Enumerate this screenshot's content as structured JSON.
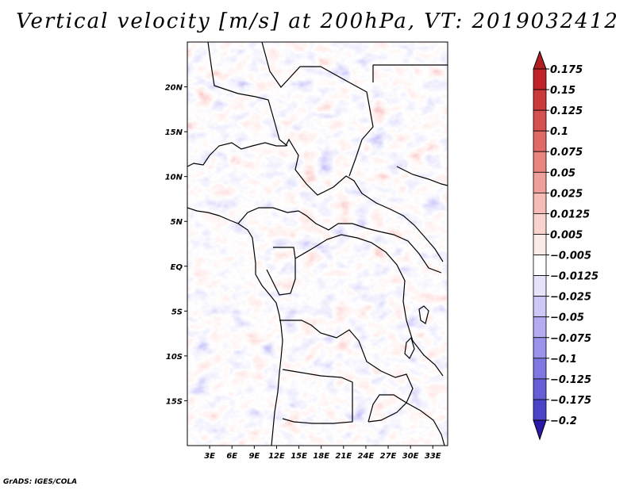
{
  "title": "Vertical velocity [m/s] at 200hPa, VT: 2019032412",
  "credit": "GrADS: IGES/COLA",
  "map": {
    "lon_range": [
      0,
      35
    ],
    "lat_range": [
      -20,
      25
    ],
    "lat_ticks": [
      {
        "lat": 20,
        "label": "20N"
      },
      {
        "lat": 15,
        "label": "15N"
      },
      {
        "lat": 10,
        "label": "10N"
      },
      {
        "lat": 5,
        "label": "5N"
      },
      {
        "lat": 0,
        "label": "EQ"
      },
      {
        "lat": -5,
        "label": "5S"
      },
      {
        "lat": -10,
        "label": "10S"
      },
      {
        "lat": -15,
        "label": "15S"
      }
    ],
    "lon_ticks": [
      {
        "lon": 3,
        "label": "3E"
      },
      {
        "lon": 6,
        "label": "6E"
      },
      {
        "lon": 9,
        "label": "9E"
      },
      {
        "lon": 12,
        "label": "12E"
      },
      {
        "lon": 15,
        "label": "15E"
      },
      {
        "lon": 18,
        "label": "18E"
      },
      {
        "lon": 21,
        "label": "21E"
      },
      {
        "lon": 24,
        "label": "24E"
      },
      {
        "lon": 27,
        "label": "27E"
      },
      {
        "lon": 30,
        "label": "30E"
      },
      {
        "lon": 33,
        "label": "33E"
      }
    ]
  },
  "colorbar": {
    "levels": [
      {
        "label": "0.175",
        "color": "#c0242a"
      },
      {
        "label": "0.15",
        "color": "#cc3a3a"
      },
      {
        "label": "0.125",
        "color": "#d65050"
      },
      {
        "label": "0.1",
        "color": "#e06a66"
      },
      {
        "label": "0.075",
        "color": "#e8857f"
      },
      {
        "label": "0.05",
        "color": "#efa09a"
      },
      {
        "label": "0.025",
        "color": "#f5bcb6"
      },
      {
        "label": "0.0125",
        "color": "#f9d4cf"
      },
      {
        "label": "0.005",
        "color": "#fceae7"
      },
      {
        "label": "−0.005",
        "color": "#ffffff"
      },
      {
        "label": "−0.0125",
        "color": "#e6e3fb"
      },
      {
        "label": "−0.025",
        "color": "#cdc8f6"
      },
      {
        "label": "−0.05",
        "color": "#b3acf1"
      },
      {
        "label": "−0.075",
        "color": "#9a92eb"
      },
      {
        "label": "−0.1",
        "color": "#8078e2"
      },
      {
        "label": "−0.125",
        "color": "#665ed6"
      },
      {
        "label": "−0.175",
        "color": "#4c44c8"
      },
      {
        "label": "−0.2",
        "color": "#3328b4"
      }
    ],
    "top_color": "#b01e22",
    "bottom_color": "#2a1aa8"
  }
}
